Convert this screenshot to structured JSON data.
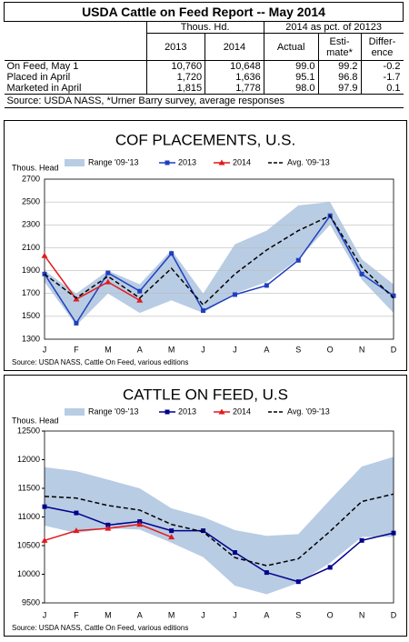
{
  "table": {
    "title": "USDA Cattle on Feed Report -- May 2014",
    "header_groups": [
      "Thous. Hd.",
      "2014 as pct. of 20123"
    ],
    "columns": [
      "2013",
      "2014",
      "Actual",
      "Esti-mate*",
      "Differ-ence"
    ],
    "rows": [
      [
        "On Feed, May 1",
        "10,760",
        "10,648",
        "99.0",
        "99.2",
        "-0.2"
      ],
      [
        "Placed in April",
        "1,720",
        "1,636",
        "95.1",
        "96.8",
        "-1.7"
      ],
      [
        "Marketed in April",
        "1,815",
        "1,778",
        "98.0",
        "97.9",
        "0.1"
      ]
    ],
    "source": "Source: USDA NASS, *Urner Barry survey, average responses"
  },
  "chart_data": [
    {
      "type": "line",
      "title": "COF PLACEMENTS, U.S.",
      "y_label": "Thous. Head",
      "source": "Source: USDA NASS, Cattle On Feed, various editions",
      "categories": [
        "J",
        "F",
        "M",
        "A",
        "M",
        "J",
        "J",
        "A",
        "S",
        "O",
        "N",
        "D"
      ],
      "ylim": [
        1300,
        2700
      ],
      "yticks": [
        1300,
        1500,
        1700,
        1900,
        2100,
        2300,
        2500,
        2700
      ],
      "grid": true,
      "range": {
        "name": "Range '09-'13",
        "color": "#b8cce4",
        "low": [
          1800,
          1420,
          1700,
          1530,
          1640,
          1530,
          1700,
          1800,
          2000,
          2300,
          1820,
          1530
        ],
        "high": [
          1900,
          1700,
          1900,
          1780,
          2080,
          1700,
          2130,
          2250,
          2470,
          2500,
          2000,
          1780
        ]
      },
      "series": [
        {
          "name": "2013",
          "color": "#1f3fbf",
          "marker": "square",
          "values": [
            1870,
            1440,
            1880,
            1720,
            2050,
            1550,
            1690,
            1770,
            1990,
            2380,
            1870,
            1680
          ]
        },
        {
          "name": "2014",
          "color": "#e31a1c",
          "marker": "triangle",
          "values": [
            2030,
            1650,
            1800,
            1640,
            null,
            null,
            null,
            null,
            null,
            null,
            null,
            null
          ]
        },
        {
          "name": "Avg. '09-'13",
          "color": "#000000",
          "dashed": true,
          "values": [
            1870,
            1660,
            1850,
            1660,
            1920,
            1600,
            1870,
            2080,
            2250,
            2380,
            1930,
            1660
          ]
        }
      ]
    },
    {
      "type": "line",
      "title": "CATTLE ON FEED, U.S",
      "y_label": "Thous. Head",
      "source": "Source: USDA NASS, Cattle On Feed, various editions",
      "categories": [
        "J",
        "F",
        "M",
        "A",
        "M",
        "J",
        "J",
        "A",
        "S",
        "O",
        "N",
        "D"
      ],
      "ylim": [
        9500,
        12500
      ],
      "yticks": [
        9500,
        10000,
        10500,
        11000,
        11500,
        12000,
        12500
      ],
      "grid": false,
      "range": {
        "name": "Range '09-'13",
        "color": "#b8cce4",
        "low": [
          10850,
          10720,
          10800,
          10780,
          10550,
          10300,
          9800,
          9650,
          9850,
          10200,
          10650,
          10650
        ],
        "high": [
          11870,
          11800,
          11650,
          11500,
          11150,
          11000,
          10770,
          10670,
          10700,
          11300,
          11880,
          12050
        ]
      },
      "series": [
        {
          "name": "2013",
          "color": "#00008b",
          "marker": "square",
          "values": [
            11180,
            11070,
            10860,
            10920,
            10760,
            10760,
            10380,
            10030,
            9870,
            10120,
            10590,
            10720
          ]
        },
        {
          "name": "2014",
          "color": "#e31a1c",
          "marker": "triangle",
          "values": [
            10590,
            10760,
            10800,
            10870,
            10648,
            null,
            null,
            null,
            null,
            null,
            null,
            null
          ]
        },
        {
          "name": "Avg. '09-'13",
          "color": "#000000",
          "dashed": true,
          "values": [
            11360,
            11330,
            11200,
            11120,
            10870,
            10740,
            10290,
            10150,
            10270,
            10750,
            11270,
            11400
          ]
        }
      ]
    }
  ]
}
